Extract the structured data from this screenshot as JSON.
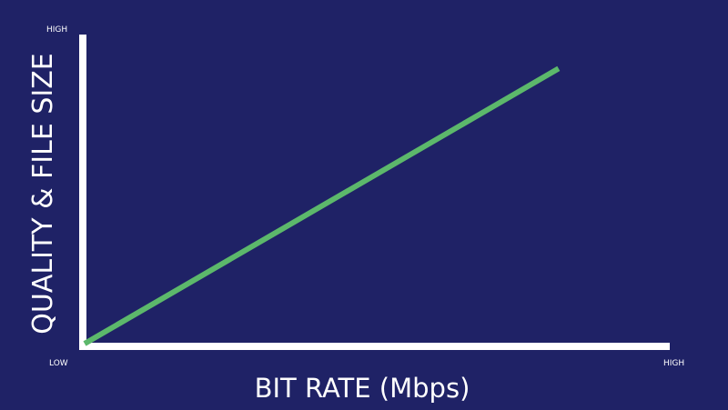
{
  "chart_data": {
    "type": "line",
    "title": "",
    "xlabel": "BIT RATE (Mbps)",
    "ylabel": "QUALITY & FILE SIZE",
    "x_tick_labels": {
      "min": "LOW",
      "max": "HIGH"
    },
    "y_tick_labels": {
      "max": "HIGH"
    },
    "xlim": [
      0,
      1
    ],
    "ylim": [
      0,
      1
    ],
    "grid": false,
    "series": [
      {
        "color": "#5cb86b",
        "x": [
          0,
          0.81
        ],
        "y": [
          0,
          0.89
        ]
      }
    ],
    "colors": {
      "background": "#1f2266",
      "axis": "#ffffff",
      "text": "#ffffff"
    }
  }
}
